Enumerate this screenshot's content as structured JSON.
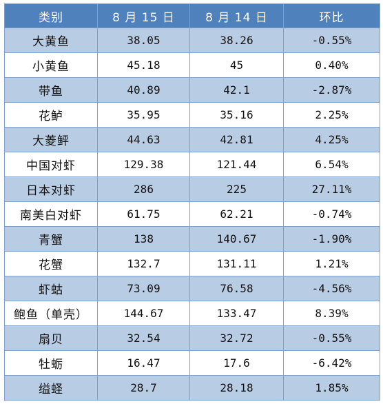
{
  "headers": [
    "类别",
    "8 月 15 日",
    "8 月 14 日",
    "环比"
  ],
  "rows": [
    {
      "category": "大黄鱼",
      "aug15": "38.05",
      "aug14": "38.26",
      "change": "-0.55%"
    },
    {
      "category": "小黄鱼",
      "aug15": "45.18",
      "aug14": "45",
      "change": "0.40%"
    },
    {
      "category": "带鱼",
      "aug15": "40.89",
      "aug14": "42.1",
      "change": "-2.87%"
    },
    {
      "category": "花鲈",
      "aug15": "35.95",
      "aug14": "35.16",
      "change": "2.25%"
    },
    {
      "category": "大菱鲆",
      "aug15": "44.63",
      "aug14": "42.81",
      "change": "4.25%"
    },
    {
      "category": "中国对虾",
      "aug15": "129.38",
      "aug14": "121.44",
      "change": "6.54%"
    },
    {
      "category": "日本对虾",
      "aug15": "286",
      "aug14": "225",
      "change": "27.11%"
    },
    {
      "category": "南美白对虾",
      "aug15": "61.75",
      "aug14": "62.21",
      "change": "-0.74%"
    },
    {
      "category": "青蟹",
      "aug15": "138",
      "aug14": "140.67",
      "change": "-1.90%"
    },
    {
      "category": "花蟹",
      "aug15": "132.7",
      "aug14": "131.11",
      "change": "1.21%"
    },
    {
      "category": "虾蛄",
      "aug15": "73.09",
      "aug14": "76.58",
      "change": "-4.56%"
    },
    {
      "category": "鲍鱼（单壳）",
      "aug15": "144.67",
      "aug14": "133.47",
      "change": "8.39%"
    },
    {
      "category": "扇贝",
      "aug15": "32.54",
      "aug14": "32.72",
      "change": "-0.55%"
    },
    {
      "category": "牡蛎",
      "aug15": "16.47",
      "aug14": "17.6",
      "change": "-6.42%"
    },
    {
      "category": "缢蛏",
      "aug15": "28.7",
      "aug14": "28.18",
      "change": "1.85%"
    }
  ]
}
